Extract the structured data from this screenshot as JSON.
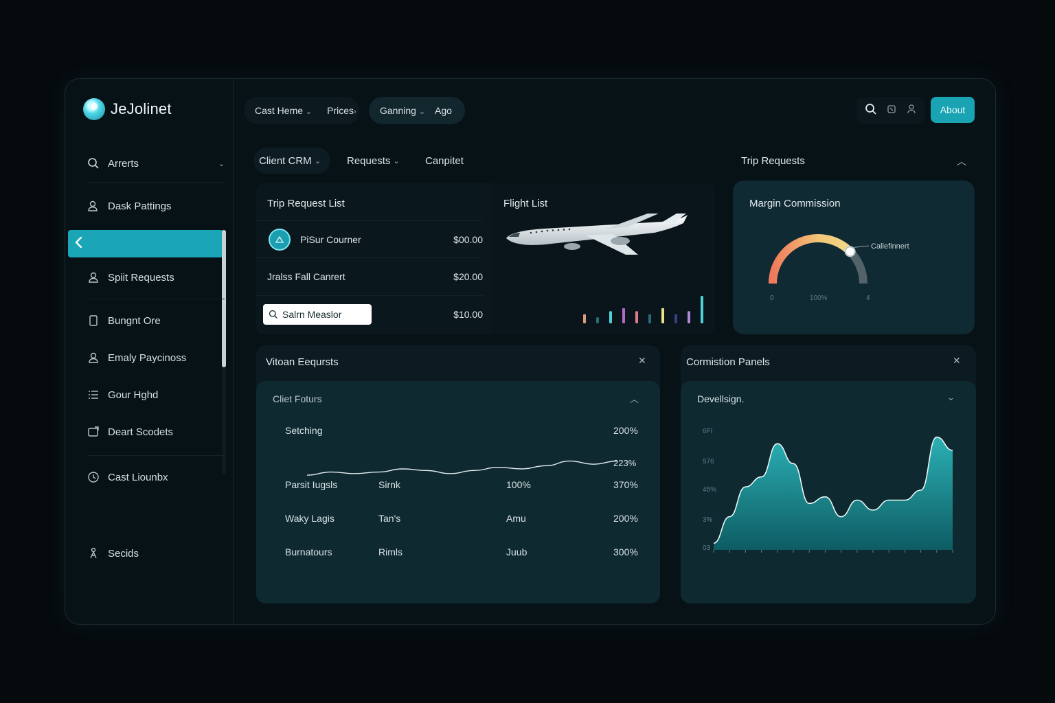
{
  "app": {
    "name": "JeJolinet"
  },
  "header": {
    "group1": {
      "item1": "Cast Heme",
      "item2": "Prices"
    },
    "group2": {
      "item1": "Ganning",
      "item2": "Ago"
    },
    "about_label": "About"
  },
  "sidebar": {
    "items": [
      {
        "label": "Arrerts",
        "icon": "search-icon"
      },
      {
        "label": "Dask Pattings",
        "icon": "user-lock-icon"
      },
      {
        "label": "Spiit Requests",
        "icon": "user-icon"
      },
      {
        "label": "Bungnt Ore",
        "icon": "document-icon"
      },
      {
        "label": "Emaly Paycinoss",
        "icon": "user-icon"
      },
      {
        "label": "Gour Hghd",
        "icon": "list-icon"
      },
      {
        "label": "Deart Scodets",
        "icon": "message-icon"
      },
      {
        "label": "Cast Liounbx",
        "icon": "clock-icon"
      },
      {
        "label": "Secids",
        "icon": "person-icon"
      }
    ]
  },
  "subtabs": {
    "tab1": "Client CRM",
    "tab2": "Requests",
    "tab3": "Canpitet"
  },
  "trip_list": {
    "title": "Trip Request List",
    "rows": [
      {
        "name": "PiSur Courner",
        "amount": "$00.00"
      },
      {
        "name": "Jralss Fall Canrert",
        "amount": "$20.00"
      },
      {
        "name": "Salrn Measlor",
        "amount": "$10.00"
      }
    ]
  },
  "flight_list": {
    "title": "Flight List"
  },
  "trip_requests": {
    "title": "Trip Requests"
  },
  "margin": {
    "title": "Margin Commission",
    "gauge_label": "Callefinnert",
    "gauge_value": 0.75,
    "scale": [
      "0",
      "100%",
      "4"
    ]
  },
  "vitan": {
    "title": "Vitoan Eeqursts",
    "section": "Cliet Foturs",
    "rows": [
      {
        "c1": "Setching",
        "c2": "",
        "c3": "",
        "c4": "200%"
      },
      {
        "c1": "",
        "c2": "",
        "c3": "",
        "c4": "223%"
      },
      {
        "c1": "Parsit Iugsls",
        "c2": "Sirnk",
        "c3": "100%",
        "c4": "370%"
      },
      {
        "c1": "Waky Lagis",
        "c2": "Tan's",
        "c3": "Amu",
        "c4": "200%"
      },
      {
        "c1": "Burnatours",
        "c2": "Rimls",
        "c3": "Juub",
        "c4": "300%"
      }
    ]
  },
  "commission": {
    "title": "Cormistion Panels",
    "section": "Devellsign.",
    "yticks": [
      "6FI",
      "576",
      "45%",
      "3%",
      "03"
    ]
  },
  "colors": {
    "accent": "#19a3b3",
    "area": "#1f9aa2"
  },
  "chart_data": [
    {
      "type": "bar",
      "values": [
        3,
        2,
        4,
        5,
        4,
        3,
        5,
        3,
        4,
        9
      ],
      "colors": [
        "#e29a7a",
        "#2a6b7a",
        "#4fd1d6",
        "#b06ac8",
        "#e07a8a",
        "#2a6b7a",
        "#e8e48a",
        "#3b3f8a",
        "#b08ad8",
        "#4fd1d6"
      ]
    },
    {
      "type": "area",
      "values": [
        2,
        10,
        19,
        22,
        32,
        26,
        14,
        16,
        10,
        15,
        12,
        15,
        15,
        18,
        34,
        30
      ]
    },
    {
      "type": "line",
      "values": [
        3,
        5,
        4,
        5,
        7,
        6,
        4,
        6,
        8,
        7,
        9,
        12,
        10,
        12
      ]
    }
  ]
}
